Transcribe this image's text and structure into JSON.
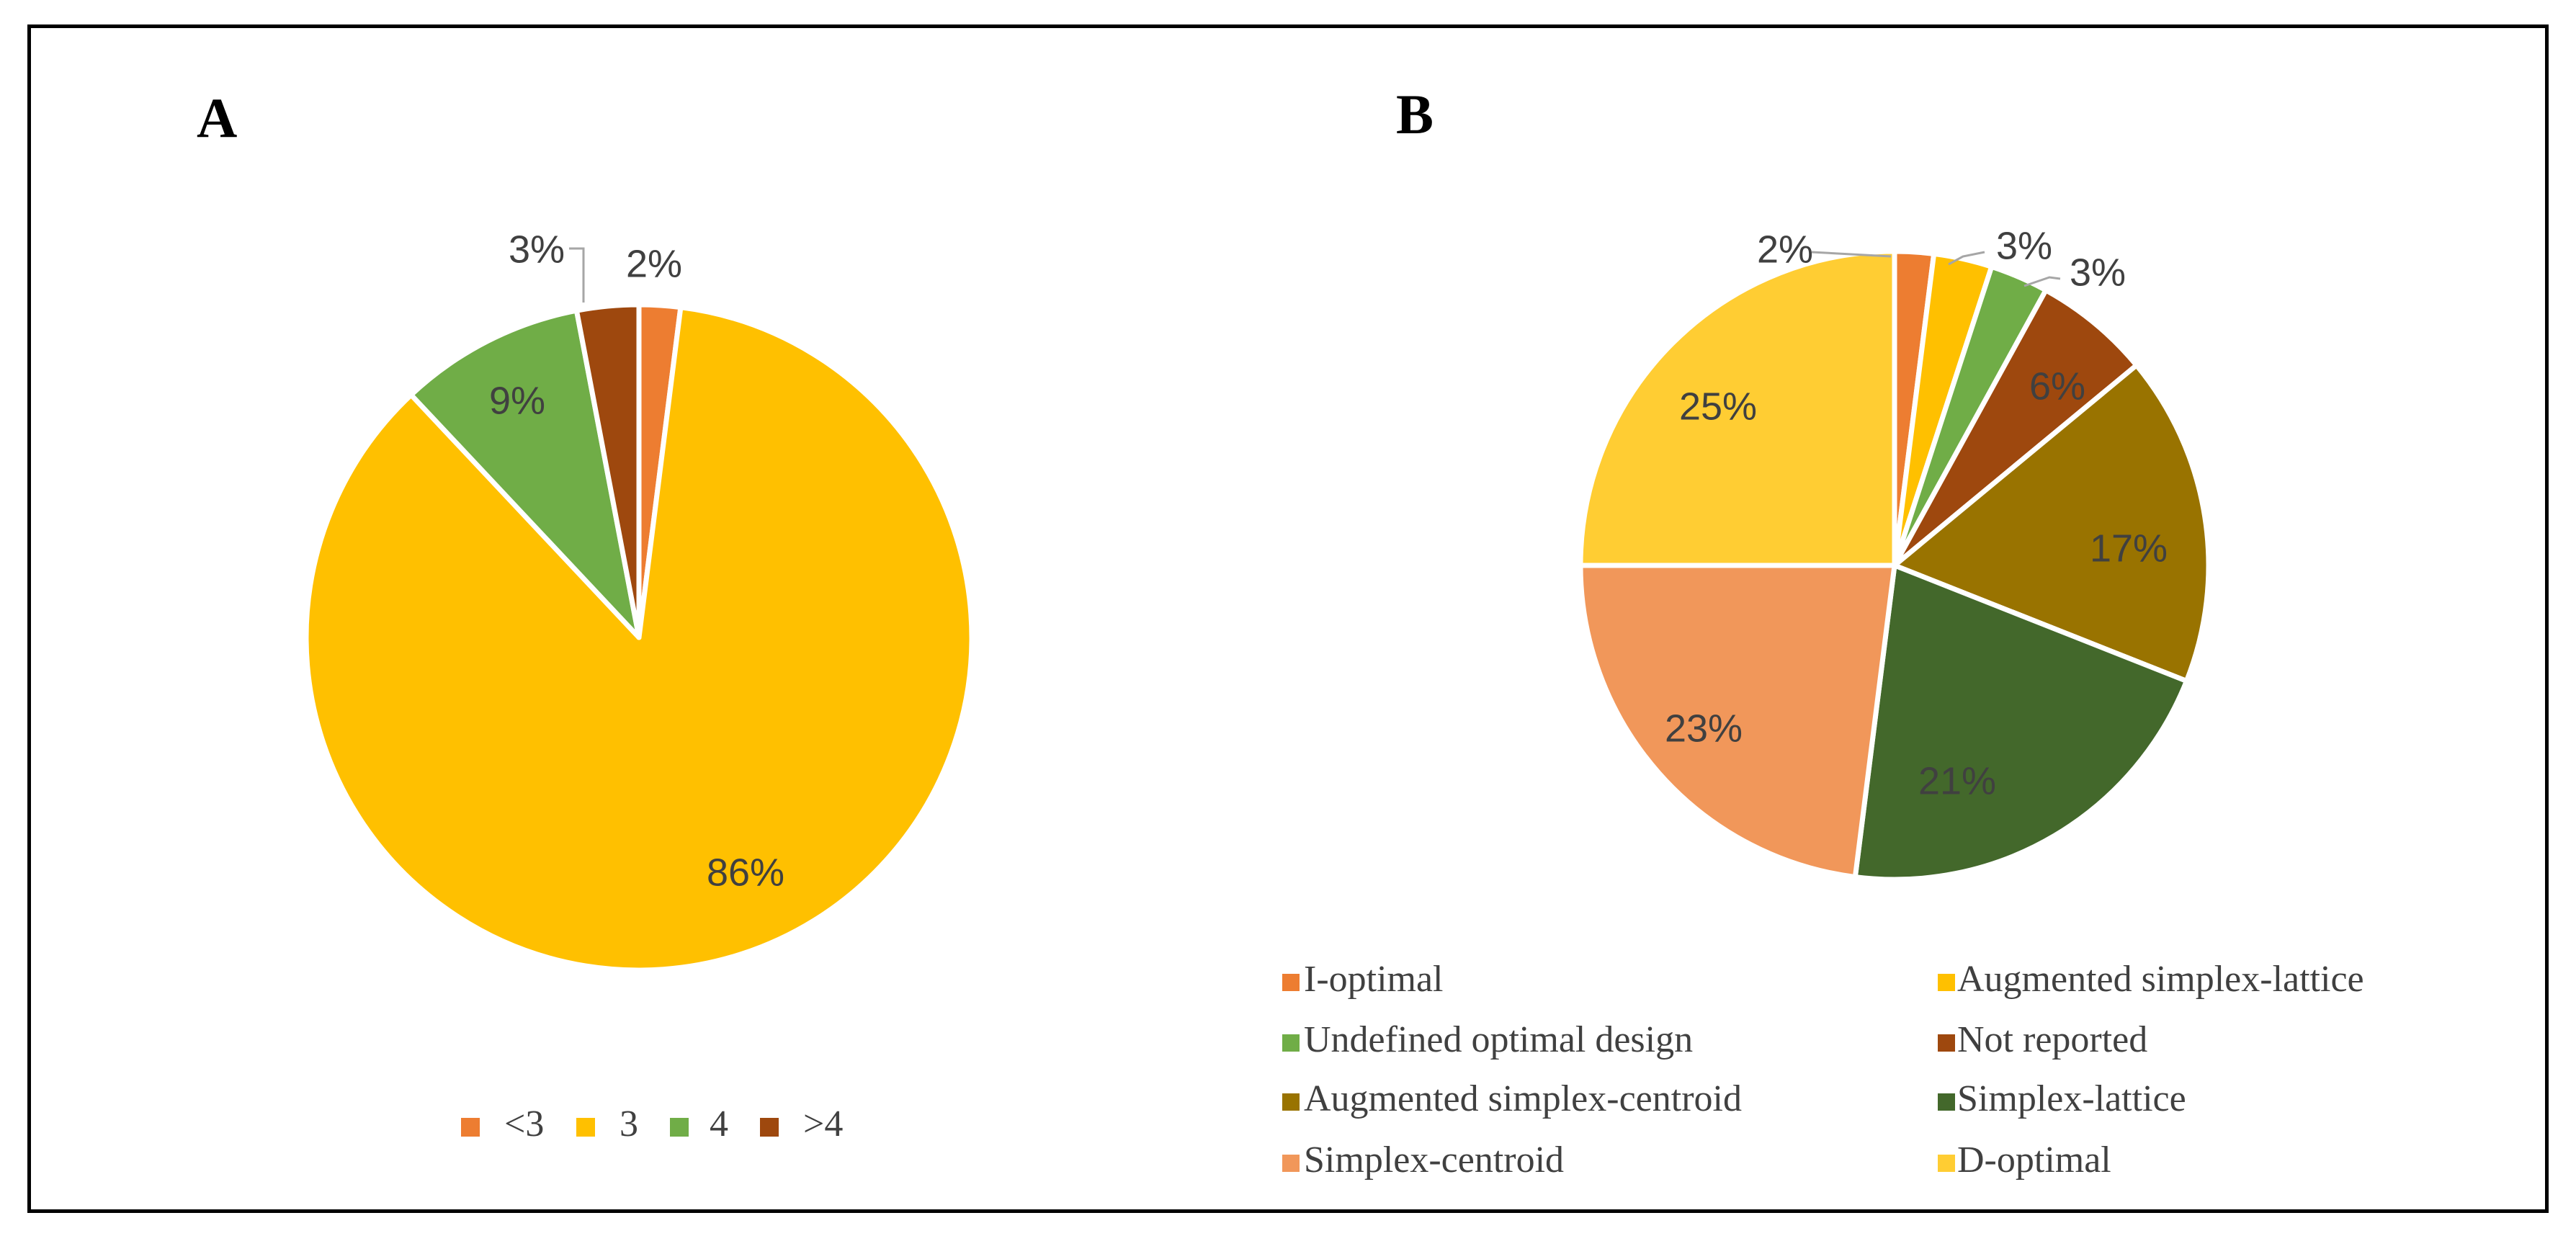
{
  "chart_data": [
    {
      "type": "pie",
      "title": "A",
      "categories": [
        "<3",
        "3",
        "4",
        ">4"
      ],
      "values": [
        2,
        86,
        9,
        3
      ],
      "labels": [
        "2%",
        "86%",
        "9%",
        "3%"
      ],
      "colors": [
        "#ED7D31",
        "#FFC000",
        "#70AD47",
        "#9E480E"
      ],
      "legend_position": "bottom"
    },
    {
      "type": "pie",
      "title": "B",
      "categories": [
        "I-optimal",
        "Augmented simplex-lattice",
        "Undefined optimal design",
        "Not reported",
        "Augmented simplex-centroid",
        "Simplex-lattice",
        "Simplex-centroid",
        "D-optimal"
      ],
      "values": [
        2,
        3,
        3,
        6,
        17,
        21,
        23,
        25
      ],
      "labels": [
        "2%",
        "3%",
        "3%",
        "6%",
        "17%",
        "21%",
        "23%",
        "25%"
      ],
      "colors": [
        "#ED7D31",
        "#FFC000",
        "#70AD47",
        "#9E480E",
        "#997300",
        "#43682B",
        "#F1975A",
        "#FFCD33"
      ],
      "legend_position": "bottom"
    }
  ]
}
